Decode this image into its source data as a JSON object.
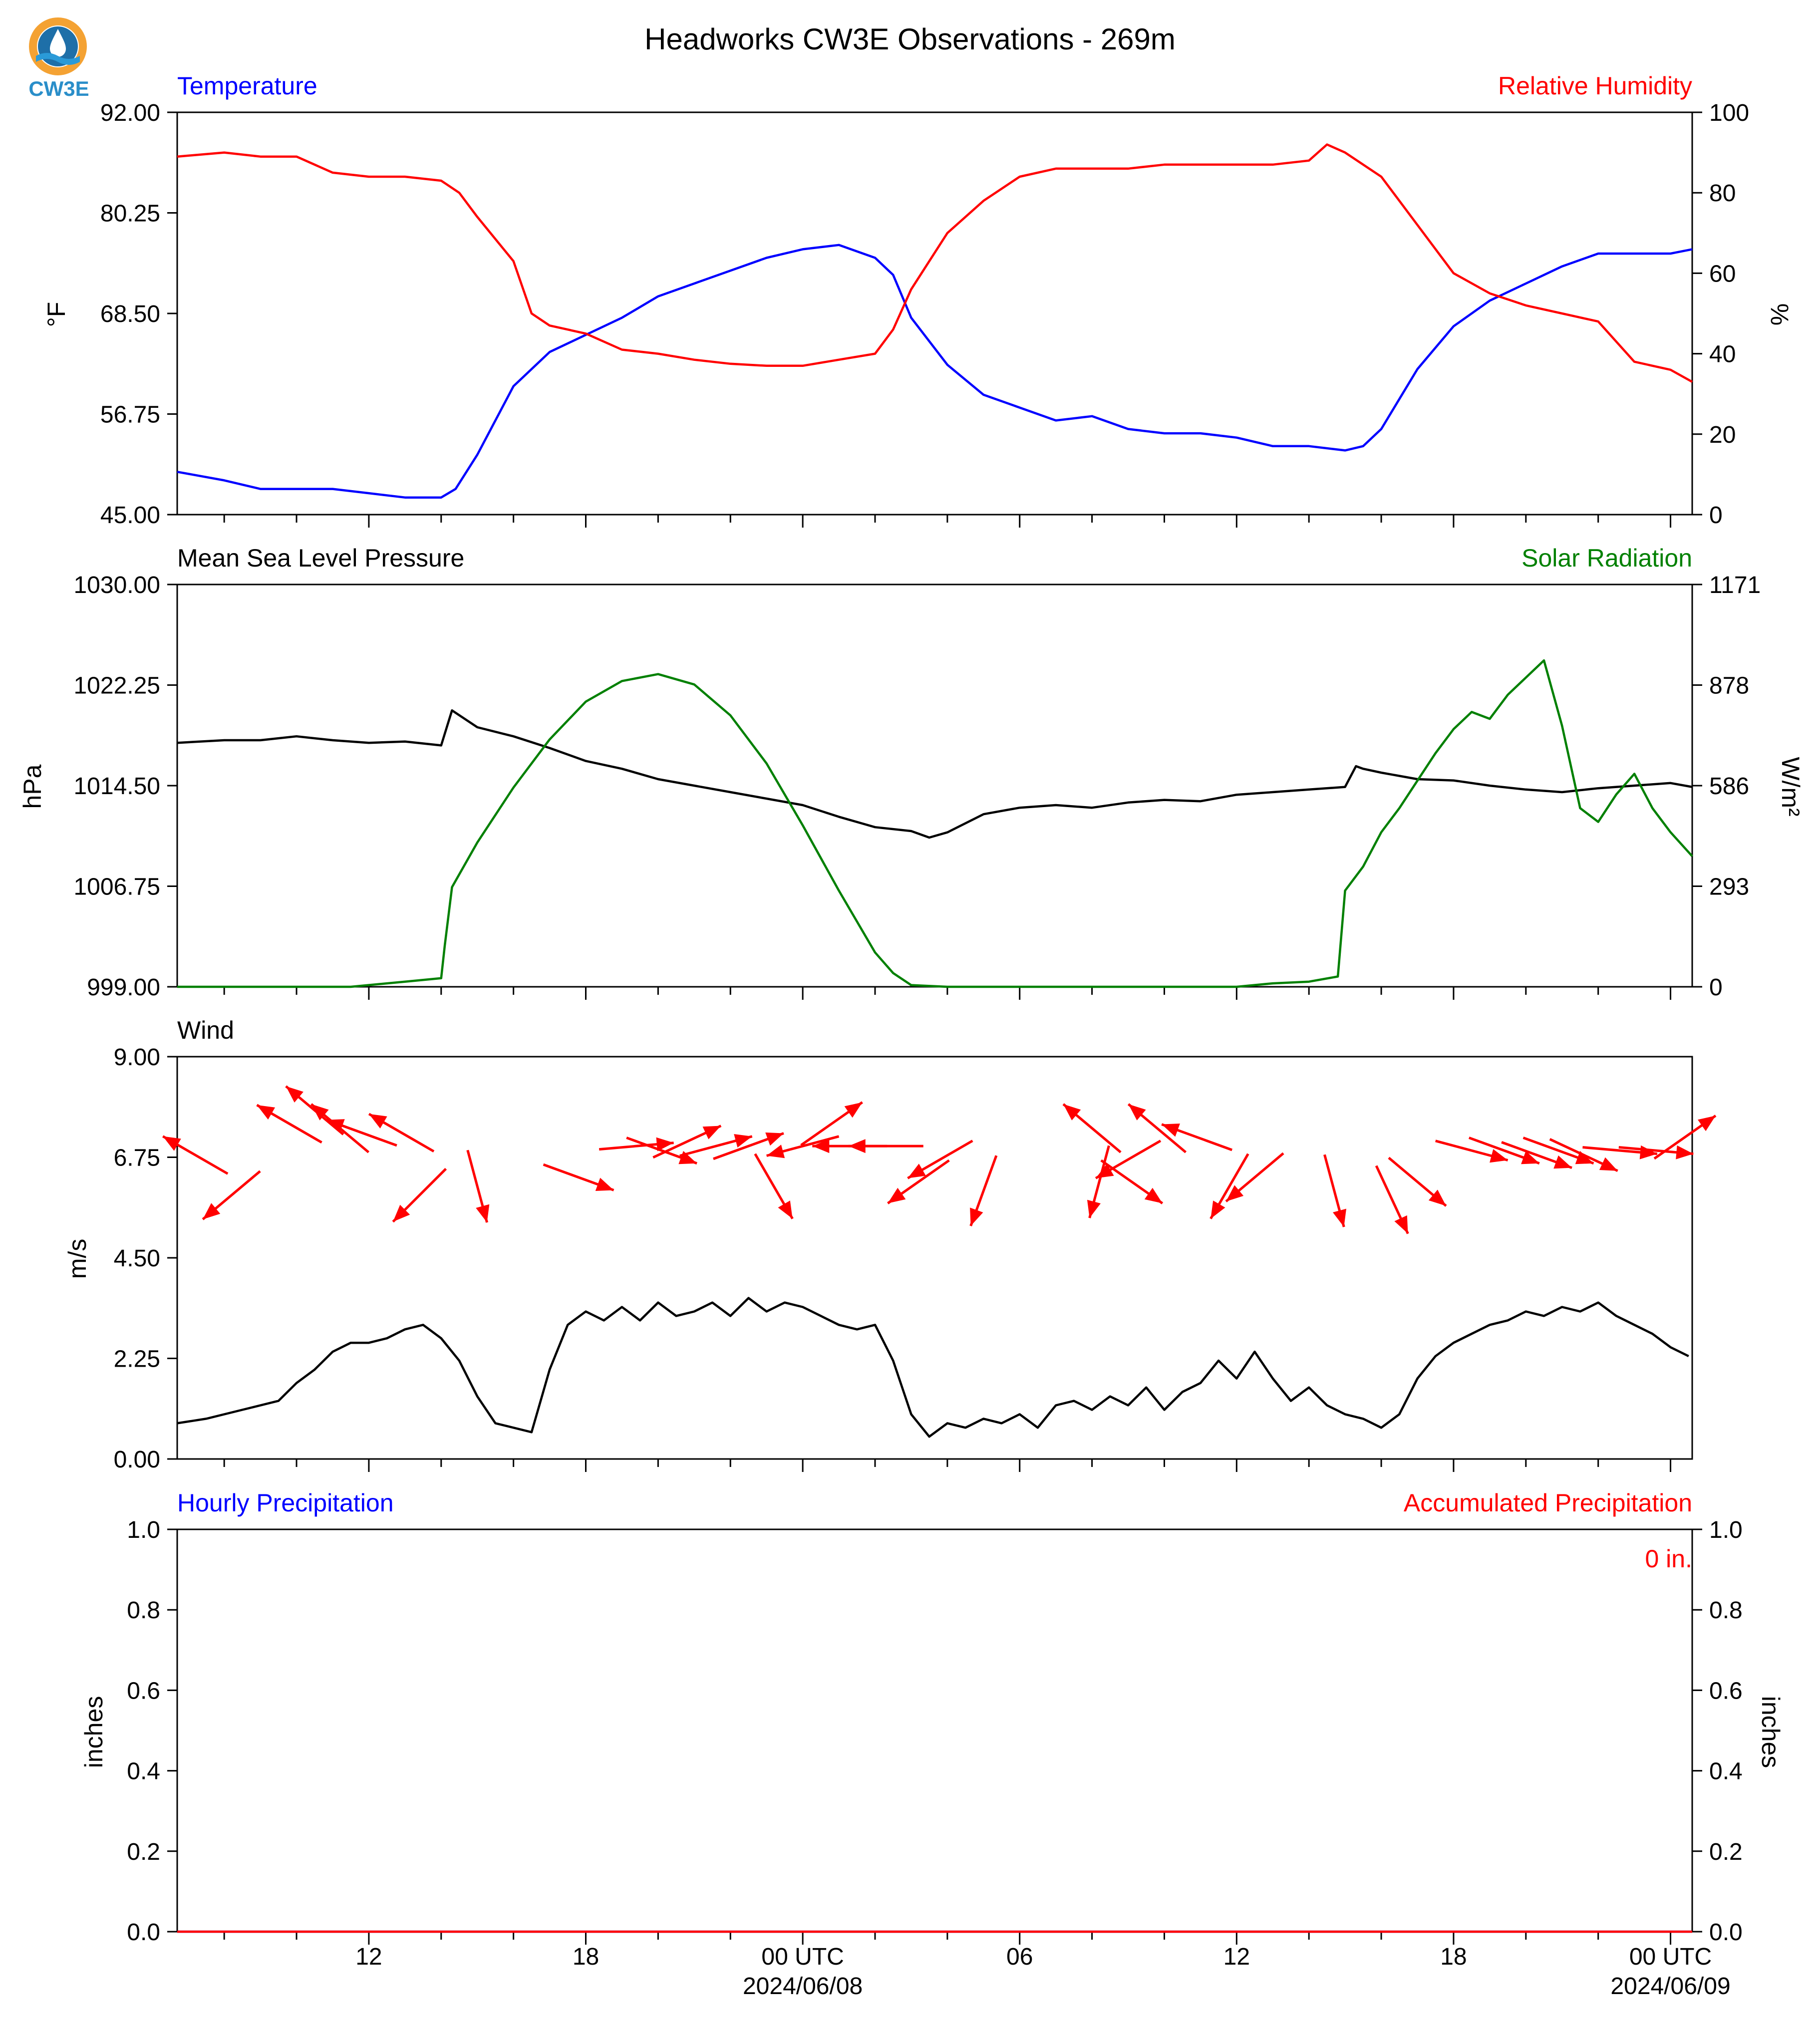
{
  "title": "Headworks CW3E Observations - 269m",
  "logo": {
    "text": "CW3E",
    "colors": {
      "ring": "#f4a233",
      "drop": "#1e6fa8",
      "wave": "#2a9ad8",
      "text": "#2a8ec9"
    }
  },
  "colors": {
    "blue": "#0000ff",
    "red": "#ff0000",
    "green": "#008000",
    "black": "#000000"
  },
  "x_axis": {
    "start_hour": 6.7,
    "end_hour": 48.6,
    "minor_step_hours": 2,
    "major_ticks": [
      {
        "hour": 12,
        "label": "12",
        "date": ""
      },
      {
        "hour": 18,
        "label": "18",
        "date": ""
      },
      {
        "hour": 24,
        "label": "00 UTC",
        "date": "2024/06/08"
      },
      {
        "hour": 30,
        "label": "06",
        "date": ""
      },
      {
        "hour": 36,
        "label": "12",
        "date": ""
      },
      {
        "hour": 42,
        "label": "18",
        "date": ""
      },
      {
        "hour": 48,
        "label": "00 UTC",
        "date": "2024/06/09"
      }
    ]
  },
  "chart_data": [
    {
      "type": "line",
      "panel": "temperature-humidity",
      "left_title": "Temperature",
      "right_title": "Relative Humidity",
      "ylabel": "°F",
      "ylabel_right": "%",
      "ylim": [
        45,
        92
      ],
      "ylim_right": [
        0,
        100
      ],
      "yticks": [
        "45.00",
        "56.75",
        "68.50",
        "80.25",
        "92.00"
      ],
      "yticks_right": [
        "0",
        "20",
        "40",
        "60",
        "80",
        "100"
      ],
      "series": [
        {
          "axis": "left",
          "color": "#0000ff",
          "x": [
            6.7,
            8,
            9,
            10,
            11,
            12,
            13,
            14,
            14.4,
            15,
            16,
            17,
            18,
            19,
            20,
            21,
            22,
            23,
            24,
            25,
            26,
            26.5,
            27,
            28,
            29,
            30,
            31,
            32,
            33,
            34,
            35,
            36,
            37,
            38,
            39,
            39.5,
            40,
            41,
            42,
            43,
            44,
            45,
            46,
            47,
            48,
            48.6
          ],
          "y": [
            50,
            49,
            48,
            48,
            48,
            47.5,
            47,
            47,
            48,
            52,
            60,
            64,
            66,
            68,
            70.5,
            72,
            73.5,
            75,
            76,
            76.5,
            75,
            73,
            68,
            62.5,
            59,
            57.5,
            56,
            56.5,
            55,
            54.5,
            54.5,
            54,
            53,
            53,
            52.5,
            53,
            55,
            62,
            67,
            70,
            72,
            74,
            75.5,
            75.5,
            75.5,
            76
          ]
        },
        {
          "axis": "right",
          "color": "#ff0000",
          "x": [
            6.7,
            8,
            9,
            10,
            11,
            12,
            13,
            14,
            14.5,
            15,
            16,
            16.5,
            17,
            18,
            19,
            20,
            21,
            22,
            23,
            24,
            25,
            26,
            26.5,
            27,
            28,
            29,
            30,
            31,
            32,
            33,
            34,
            35,
            36,
            37,
            38,
            38.5,
            39,
            40,
            41,
            42,
            43,
            44,
            45,
            46,
            47,
            48,
            48.6
          ],
          "y": [
            89,
            90,
            89,
            89,
            85,
            84,
            84,
            83,
            80,
            74,
            63,
            50,
            47,
            45,
            41,
            40,
            38.5,
            37.5,
            37,
            37,
            38.5,
            40,
            46,
            56,
            70,
            78,
            84,
            86,
            86,
            86,
            87,
            87,
            87,
            87,
            88,
            92,
            90,
            84,
            72,
            60,
            55,
            52,
            50,
            48,
            38,
            36,
            33
          ]
        }
      ]
    },
    {
      "type": "line",
      "panel": "pressure-solar",
      "left_title": "Mean Sea Level Pressure",
      "right_title": "Solar Radiation",
      "ylabel": "hPa",
      "ylabel_right": "W/m²",
      "ylim": [
        999,
        1030
      ],
      "ylim_right": [
        0,
        1171
      ],
      "yticks": [
        "999.00",
        "1006.75",
        "1014.50",
        "1022.25",
        "1030.00"
      ],
      "yticks_right": [
        "0",
        "293",
        "586",
        "878",
        "1171"
      ],
      "series": [
        {
          "axis": "left",
          "color": "#000000",
          "x": [
            6.7,
            8,
            9,
            10,
            11,
            12,
            13,
            14,
            14.1,
            14.3,
            15,
            16,
            17,
            18,
            19,
            20,
            21,
            22,
            23,
            24,
            25,
            26,
            27,
            27.5,
            28,
            29,
            30,
            31,
            32,
            33,
            34,
            35,
            36,
            37,
            38,
            39,
            39.3,
            39.5,
            40,
            41,
            42,
            43,
            44,
            45,
            46,
            47,
            48,
            48.6
          ],
          "y": [
            1017.8,
            1018.0,
            1018.0,
            1018.3,
            1018.0,
            1017.8,
            1017.9,
            1017.6,
            1018.5,
            1020.3,
            1019.0,
            1018.3,
            1017.4,
            1016.4,
            1015.8,
            1015.0,
            1014.5,
            1014.0,
            1013.5,
            1013.0,
            1012.1,
            1011.3,
            1011.0,
            1010.5,
            1010.9,
            1012.3,
            1012.8,
            1013.0,
            1012.8,
            1013.2,
            1013.4,
            1013.3,
            1013.8,
            1014.0,
            1014.2,
            1014.4,
            1016.0,
            1015.8,
            1015.5,
            1015.0,
            1014.9,
            1014.5,
            1014.2,
            1014.0,
            1014.3,
            1014.5,
            1014.7,
            1014.4
          ]
        },
        {
          "axis": "right",
          "color": "#008000",
          "x": [
            6.7,
            11.5,
            13,
            14,
            14.1,
            14.3,
            15,
            16,
            17,
            18,
            19,
            20,
            21,
            22,
            23,
            24,
            25,
            26,
            26.5,
            27,
            28,
            30,
            33,
            36,
            37,
            38,
            38.8,
            39,
            39.5,
            40,
            40.5,
            41,
            41.5,
            42,
            42.5,
            43,
            43.5,
            44,
            44.5,
            45,
            45.5,
            46,
            46.5,
            47,
            47.5,
            48,
            48.6
          ],
          "y": [
            0,
            0,
            15,
            25,
            120,
            290,
            420,
            580,
            720,
            830,
            890,
            910,
            880,
            790,
            650,
            470,
            280,
            100,
            40,
            5,
            0,
            0,
            0,
            0,
            10,
            15,
            30,
            280,
            350,
            450,
            520,
            600,
            680,
            750,
            800,
            780,
            850,
            900,
            950,
            760,
            520,
            480,
            560,
            620,
            520,
            450,
            380
          ]
        }
      ]
    },
    {
      "type": "line",
      "panel": "wind",
      "left_title": "Wind",
      "ylabel": "m/s",
      "ylim": [
        0,
        9
      ],
      "yticks": [
        "0.00",
        "2.25",
        "4.50",
        "6.75",
        "9.00"
      ],
      "series": [
        {
          "axis": "left",
          "color": "#000000",
          "x": [
            6.7,
            7.5,
            8.5,
            9.5,
            10,
            10.5,
            11,
            11.5,
            12,
            12.5,
            13,
            13.5,
            14,
            14.5,
            15,
            15.5,
            16,
            16.5,
            17,
            17.5,
            18,
            18.5,
            19,
            19.5,
            20,
            20.5,
            21,
            21.5,
            22,
            22.5,
            23,
            23.5,
            24,
            24.5,
            25,
            25.5,
            26,
            26.5,
            27,
            27.5,
            28,
            28.5,
            29,
            29.5,
            30,
            30.5,
            31,
            31.5,
            32,
            32.5,
            33,
            33.5,
            34,
            34.5,
            35,
            35.5,
            36,
            36.5,
            37,
            37.5,
            38,
            38.5,
            39,
            39.5,
            40,
            40.5,
            41,
            41.5,
            42,
            42.5,
            43,
            43.5,
            44,
            44.5,
            45,
            45.5,
            46,
            46.5,
            47,
            47.5,
            48,
            48.5
          ],
          "y": [
            0.8,
            0.9,
            1.1,
            1.3,
            1.7,
            2.0,
            2.4,
            2.6,
            2.6,
            2.7,
            2.9,
            3.0,
            2.7,
            2.2,
            1.4,
            0.8,
            0.7,
            0.6,
            2.0,
            3.0,
            3.3,
            3.1,
            3.4,
            3.1,
            3.5,
            3.2,
            3.3,
            3.5,
            3.2,
            3.6,
            3.3,
            3.5,
            3.4,
            3.2,
            3.0,
            2.9,
            3.0,
            2.2,
            1.0,
            0.5,
            0.8,
            0.7,
            0.9,
            0.8,
            1.0,
            0.7,
            1.2,
            1.3,
            1.1,
            1.4,
            1.2,
            1.6,
            1.1,
            1.5,
            1.7,
            2.2,
            1.8,
            2.4,
            1.8,
            1.3,
            1.6,
            1.2,
            1.0,
            0.9,
            0.7,
            1.0,
            1.8,
            2.3,
            2.6,
            2.8,
            3.0,
            3.1,
            3.3,
            3.2,
            3.4,
            3.3,
            3.5,
            3.2,
            3.0,
            2.8,
            2.5,
            2.3
          ]
        }
      ],
      "arrows": {
        "color": "#ff0000",
        "items": [
          [
            7.2,
            6.8,
            300
          ],
          [
            8.2,
            5.9,
            230
          ],
          [
            9.8,
            7.5,
            300
          ],
          [
            10.5,
            7.8,
            310
          ],
          [
            11.2,
            7.4,
            310
          ],
          [
            11.8,
            7.3,
            290
          ],
          [
            12.9,
            7.3,
            300
          ],
          [
            13.4,
            5.9,
            225
          ],
          [
            15.0,
            6.1,
            165
          ],
          [
            17.8,
            6.3,
            110
          ],
          [
            19.4,
            7.0,
            85
          ],
          [
            20.1,
            6.9,
            110
          ],
          [
            20.8,
            7.1,
            65
          ],
          [
            21.6,
            7.0,
            75
          ],
          [
            22.5,
            7.0,
            70
          ],
          [
            23.2,
            6.1,
            150
          ],
          [
            24.0,
            7.0,
            255
          ],
          [
            24.8,
            7.5,
            55
          ],
          [
            25.3,
            7.0,
            270
          ],
          [
            26.3,
            7.0,
            270
          ],
          [
            27.2,
            6.2,
            235
          ],
          [
            27.8,
            6.7,
            240
          ],
          [
            29.0,
            6.0,
            200
          ],
          [
            32.0,
            7.4,
            310
          ],
          [
            32.2,
            6.2,
            195
          ],
          [
            33.1,
            6.2,
            125
          ],
          [
            33.0,
            6.7,
            240
          ],
          [
            33.8,
            7.4,
            310
          ],
          [
            34.9,
            7.2,
            290
          ],
          [
            35.8,
            6.1,
            210
          ],
          [
            36.5,
            6.3,
            230
          ],
          [
            38.7,
            6.0,
            165
          ],
          [
            40.3,
            5.8,
            155
          ],
          [
            41.0,
            6.2,
            130
          ],
          [
            42.5,
            6.9,
            105
          ],
          [
            43.4,
            6.9,
            110
          ],
          [
            44.3,
            6.8,
            110
          ],
          [
            44.9,
            6.9,
            110
          ],
          [
            45.6,
            6.8,
            115
          ],
          [
            46.6,
            6.9,
            95
          ],
          [
            47.6,
            6.9,
            95
          ],
          [
            48.4,
            7.2,
            55
          ]
        ]
      }
    },
    {
      "type": "line",
      "panel": "precipitation",
      "left_title": "Hourly Precipitation",
      "right_title": "Accumulated Precipitation",
      "ylabel": "inches",
      "ylabel_right": "inches",
      "ylim": [
        0,
        1
      ],
      "ylim_right": [
        0,
        1
      ],
      "yticks": [
        "0.0",
        "0.2",
        "0.4",
        "0.6",
        "0.8",
        "1.0"
      ],
      "yticks_right": [
        "0.0",
        "0.2",
        "0.4",
        "0.6",
        "0.8",
        "1.0"
      ],
      "annotation": "0 in.",
      "series": [
        {
          "axis": "left",
          "color": "#0000ff",
          "x": [
            6.7,
            48.6
          ],
          "y": [
            0,
            0
          ]
        },
        {
          "axis": "right",
          "color": "#ff0000",
          "x": [
            6.7,
            48.6
          ],
          "y": [
            0,
            0
          ]
        }
      ]
    }
  ]
}
